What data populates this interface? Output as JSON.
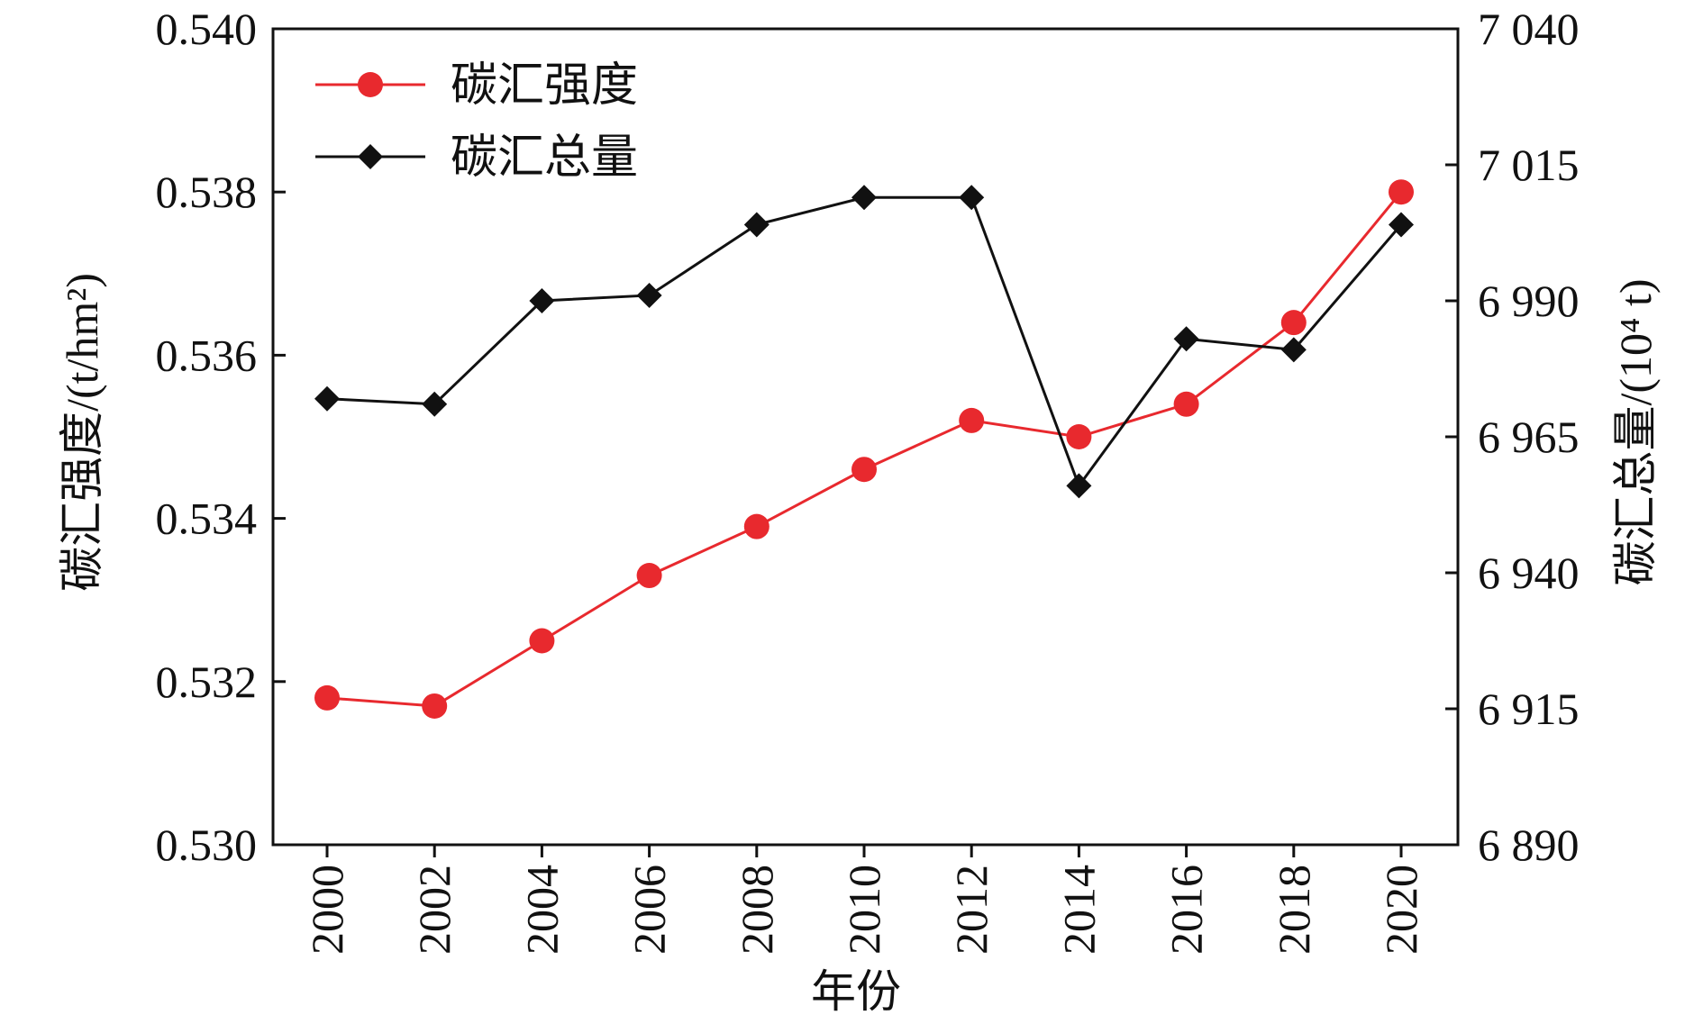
{
  "chart_data": {
    "type": "line",
    "xlabel": "年份",
    "ylabel_left": "碳汇强度/(t/hm²)",
    "ylabel_right": "碳汇总量/(10⁴ t)",
    "categories": [
      "2000",
      "2002",
      "2004",
      "2006",
      "2008",
      "2010",
      "2012",
      "2014",
      "2016",
      "2018",
      "2020"
    ],
    "y_left": {
      "range": [
        0.53,
        0.54
      ],
      "ticks": [
        "0.530",
        "0.532",
        "0.534",
        "0.536",
        "0.538",
        "0.540"
      ]
    },
    "y_right": {
      "range": [
        6890,
        7040
      ],
      "ticks": [
        "6 890",
        "6 915",
        "6 940",
        "6 965",
        "6 990",
        "7 015",
        "7 040"
      ]
    },
    "series": [
      {
        "name": "碳汇强度",
        "axis": "left",
        "color": "#e8292e",
        "marker": "circle",
        "values": [
          0.5318,
          0.5317,
          0.5325,
          0.5333,
          0.5339,
          0.5346,
          0.5352,
          0.535,
          0.5354,
          0.5364,
          0.538
        ]
      },
      {
        "name": "碳汇总量",
        "axis": "right",
        "color": "#111111",
        "marker": "diamond",
        "values": [
          6972,
          6971,
          6990,
          6991,
          7004,
          7009,
          7009,
          6956,
          6983,
          6981,
          7004
        ]
      }
    ],
    "legend_position": "top-left",
    "grid": false
  }
}
